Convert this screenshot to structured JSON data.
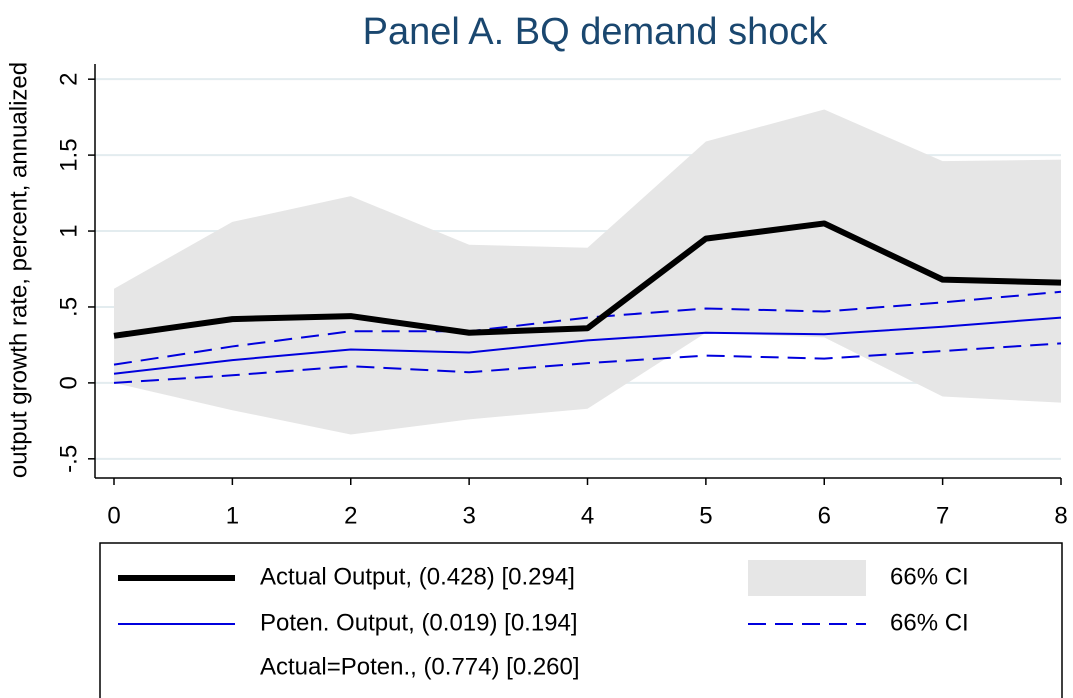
{
  "chart_data": {
    "type": "line",
    "title": "Panel A. BQ demand shock",
    "y_label": "output growth rate, percent, annualized",
    "x": [
      0,
      1,
      2,
      3,
      4,
      5,
      6,
      7,
      8
    ],
    "xlim": [
      0,
      8
    ],
    "xticks": [
      0,
      1,
      2,
      3,
      4,
      5,
      6,
      7,
      8
    ],
    "ylim": [
      -0.6,
      2.1
    ],
    "yticks": [
      {
        "value": -0.5,
        "label": "-.5"
      },
      0,
      {
        "value": 0.5,
        "label": ".5"
      },
      1,
      1.5,
      2
    ],
    "grid": true,
    "band": {
      "name": "66% CI",
      "color": "#e6e6e6",
      "upper": [
        0.62,
        1.06,
        1.23,
        0.91,
        0.89,
        1.59,
        1.8,
        1.46,
        1.47
      ],
      "lower": [
        0.0,
        -0.18,
        -0.34,
        -0.24,
        -0.17,
        0.33,
        0.3,
        -0.09,
        -0.13
      ]
    },
    "dashed_band": {
      "name": "66% CI",
      "color": "#0000dd",
      "upper": [
        0.12,
        0.24,
        0.34,
        0.34,
        0.43,
        0.49,
        0.47,
        0.53,
        0.6
      ],
      "lower": [
        0.0,
        0.05,
        0.11,
        0.07,
        0.13,
        0.18,
        0.16,
        0.21,
        0.26
      ]
    },
    "series": [
      {
        "name": "Actual Output, (0.428) [0.294]",
        "color": "#000000",
        "values": [
          0.31,
          0.42,
          0.44,
          0.33,
          0.36,
          0.95,
          1.05,
          0.68,
          0.66
        ]
      },
      {
        "name": "Poten. Output, (0.019) [0.194]",
        "color": "#0000dd",
        "values": [
          0.06,
          0.15,
          0.22,
          0.2,
          0.28,
          0.33,
          0.32,
          0.37,
          0.43
        ]
      }
    ],
    "legend_note": "Actual=Poten., (0.774) [0.260]"
  }
}
